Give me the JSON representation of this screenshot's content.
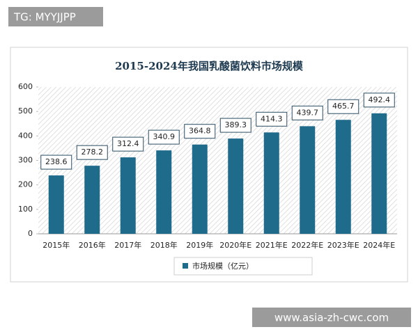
{
  "watermark_top": "TG: MYYJJPP",
  "watermark_bottom": "www.asia-zh-cwc.com",
  "chart_data": {
    "type": "bar",
    "title": "2015-2024年我国乳酸菌饮料市场规模",
    "categories": [
      "2015年",
      "2016年",
      "2017年",
      "2018年",
      "2019年",
      "2020年E",
      "2021年E",
      "2022年E",
      "2023年E",
      "2024年E"
    ],
    "series": [
      {
        "name": "市场规模（亿元）",
        "color": "#1f6b8c",
        "values": [
          238.6,
          278.2,
          312.4,
          340.9,
          364.8,
          389.3,
          414.3,
          439.7,
          465.7,
          492.4
        ]
      }
    ],
    "ylim": [
      0,
      600
    ],
    "yticks": [
      0,
      100,
      200,
      300,
      400,
      500,
      600
    ],
    "legend": "bottom"
  }
}
